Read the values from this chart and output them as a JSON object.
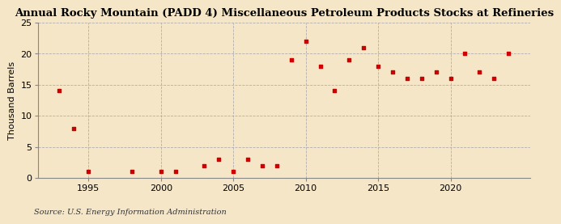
{
  "title": "Annual Rocky Mountain (PADD 4) Miscellaneous Petroleum Products Stocks at Refineries",
  "ylabel": "Thousand Barrels",
  "source": "Source: U.S. Energy Information Administration",
  "background_color": "#f5e6c8",
  "marker_color": "#cc0000",
  "years": [
    1993,
    1994,
    1995,
    1998,
    2000,
    2001,
    2003,
    2004,
    2005,
    2006,
    2007,
    2008,
    2009,
    2010,
    2011,
    2012,
    2013,
    2014,
    2015,
    2016,
    2017,
    2018,
    2019,
    2020,
    2021,
    2022,
    2023,
    2024
  ],
  "values": [
    14,
    8,
    1,
    1,
    1,
    1,
    2,
    3,
    1,
    3,
    2,
    2,
    19,
    22,
    18,
    14,
    19,
    21,
    18,
    17,
    16,
    16,
    17,
    16,
    20,
    17,
    16,
    20
  ],
  "xlim": [
    1991.5,
    2025.5
  ],
  "ylim": [
    0,
    25
  ],
  "yticks": [
    0,
    5,
    10,
    15,
    20,
    25
  ],
  "xticks": [
    1995,
    2000,
    2005,
    2010,
    2015,
    2020
  ],
  "grid_color": "#aaaaaa",
  "title_fontsize": 9.5,
  "label_fontsize": 8,
  "tick_fontsize": 8,
  "source_fontsize": 7
}
